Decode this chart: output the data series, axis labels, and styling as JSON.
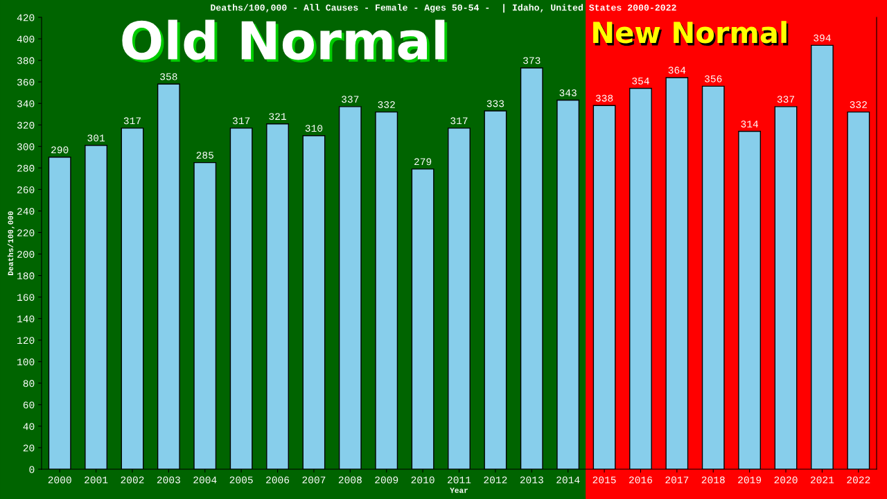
{
  "chart_data": {
    "type": "bar",
    "title": "Deaths/100,000 - All Causes - Female - Ages 50-54 -  | Idaho, United States 2000-2022",
    "xlabel": "Year",
    "ylabel": "Deaths/100,000",
    "categories": [
      "2000",
      "2001",
      "2002",
      "2003",
      "2004",
      "2005",
      "2006",
      "2007",
      "2008",
      "2009",
      "2010",
      "2011",
      "2012",
      "2013",
      "2014",
      "2015",
      "2016",
      "2017",
      "2018",
      "2019",
      "2020",
      "2021",
      "2022"
    ],
    "values": [
      290,
      301,
      317,
      358,
      285,
      317,
      321,
      310,
      337,
      332,
      279,
      317,
      333,
      373,
      343,
      338,
      354,
      364,
      356,
      314,
      337,
      394,
      332
    ],
    "color": "#87ceeb",
    "data_labels": true,
    "ylim": [
      0,
      420
    ],
    "yticks": [
      0,
      20,
      40,
      60,
      80,
      100,
      120,
      140,
      160,
      180,
      200,
      220,
      240,
      260,
      280,
      300,
      320,
      340,
      360,
      380,
      400,
      420
    ],
    "bands": [
      {
        "axis": "x",
        "from": "2000",
        "to": "2014",
        "label": "Old Normal",
        "color": "#006400"
      },
      {
        "axis": "x",
        "from": "2015",
        "to": "2022",
        "label": "New Normal",
        "color": "#ff0000"
      }
    ],
    "grid": false,
    "legend": false
  }
}
